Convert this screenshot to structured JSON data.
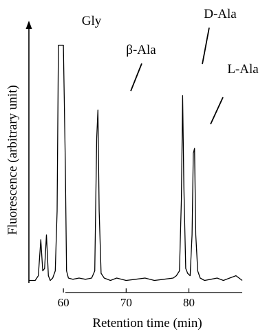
{
  "chart_data": {
    "type": "line",
    "title": "",
    "xlabel": "Retention time (min)",
    "ylabel": "Fluorescence (arbitrary unit)",
    "xlim": [
      54.5,
      88.5
    ],
    "ylim": [
      0,
      1
    ],
    "xticks": [
      60,
      70,
      80
    ],
    "xtick_labels": [
      "60",
      "70",
      "80"
    ],
    "grid": false,
    "legend": "none",
    "series": [
      {
        "x": [
          54.5,
          55.5,
          56.0,
          56.4,
          56.7,
          57.0,
          57.3,
          57.6,
          57.9,
          58.3,
          58.7,
          59.0,
          59.2,
          59.3,
          59.7,
          60.0,
          60.3,
          60.5,
          60.8,
          61.5,
          62.5,
          63.5,
          64.5,
          65.0,
          65.3,
          65.5,
          65.7,
          66.0,
          66.5,
          67.5,
          68.5,
          70.0,
          71.5,
          73.0,
          74.5,
          76.0,
          77.5,
          78.0,
          78.5,
          78.8,
          79.0,
          79.2,
          79.5,
          79.8,
          80.2,
          80.5,
          80.7,
          80.9,
          81.1,
          81.4,
          81.8,
          82.5,
          83.5,
          84.5,
          85.5,
          86.5,
          87.5,
          88.5
        ],
        "y": [
          0.01,
          0.01,
          0.03,
          0.18,
          0.05,
          0.06,
          0.2,
          0.03,
          0.01,
          0.02,
          0.05,
          0.3,
          0.99,
          0.99,
          0.99,
          0.99,
          0.5,
          0.05,
          0.02,
          0.015,
          0.02,
          0.015,
          0.02,
          0.05,
          0.6,
          0.72,
          0.3,
          0.04,
          0.02,
          0.01,
          0.02,
          0.01,
          0.015,
          0.02,
          0.01,
          0.015,
          0.02,
          0.03,
          0.05,
          0.35,
          0.78,
          0.4,
          0.06,
          0.04,
          0.03,
          0.2,
          0.54,
          0.56,
          0.2,
          0.05,
          0.02,
          0.01,
          0.015,
          0.02,
          0.01,
          0.02,
          0.03,
          0.01
        ]
      }
    ],
    "annotations": [
      {
        "text": "Gly",
        "x": 59.5
      },
      {
        "text": "β-Ala",
        "x": 65.5
      },
      {
        "text": "D-Ala",
        "x": 79.0
      },
      {
        "text": "L-Ala",
        "x": 80.8
      }
    ]
  }
}
